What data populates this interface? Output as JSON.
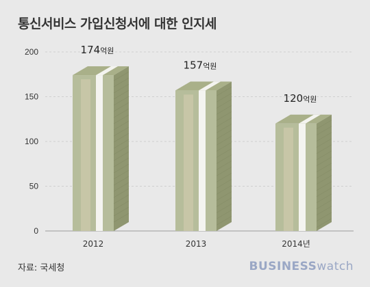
{
  "title": "통신서비스 가입신청서에 대한 인지세",
  "source": "자료: 국세청",
  "brand": {
    "part1": "BUSINESS",
    "part2": "watch"
  },
  "colors": {
    "background": "#e9e9e9",
    "grid": "#cfcfcf",
    "axis_text": "#333333",
    "bill_front": "#b6bd9b",
    "bill_side": "#8f9670",
    "bill_top": "#a9b089",
    "band": "#f4f4f0",
    "band_shade": "#d6ceb0"
  },
  "chart_data": {
    "type": "bar",
    "title": "통신서비스 가입신청서에 대한 인지세",
    "categories": [
      "2012",
      "2013",
      "2014년"
    ],
    "values": [
      174,
      157,
      120
    ],
    "data_labels": [
      {
        "num": "174",
        "unit": "억원"
      },
      {
        "num": "157",
        "unit": "억원"
      },
      {
        "num": "120",
        "unit": "억원"
      }
    ],
    "y_ticks": [
      "0",
      "50",
      "100",
      "150",
      "200"
    ],
    "ylim": [
      0,
      200
    ],
    "grid": true,
    "xlabel": "",
    "ylabel": ""
  }
}
